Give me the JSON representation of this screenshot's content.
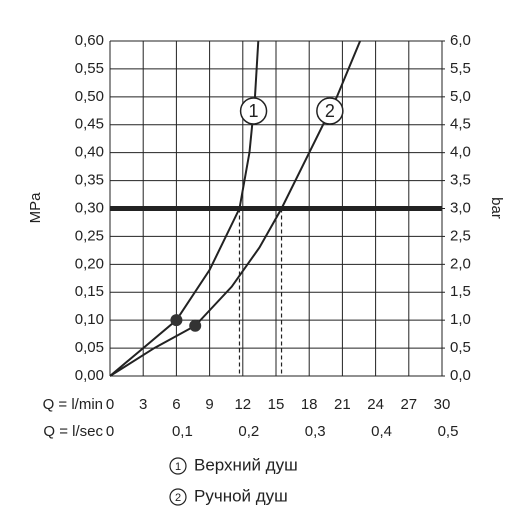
{
  "chart_data": {
    "type": "line",
    "y_label": "MPa",
    "y2_label": "bar",
    "x_label": "Q = l/min",
    "x2_label": "Q = l/sec",
    "xlim": [
      0,
      30
    ],
    "xticks": [
      0,
      3,
      6,
      9,
      12,
      15,
      18,
      21,
      24,
      27,
      30
    ],
    "x2lim": [
      0,
      0.5
    ],
    "x2ticks": [
      0,
      {
        "value": 0.1,
        "label": "0,1"
      },
      {
        "value": 0.2,
        "label": "0,2"
      },
      {
        "value": 0.3,
        "label": "0,3"
      },
      {
        "value": 0.4,
        "label": "0,4"
      },
      {
        "value": 0.5,
        "label": "0,5"
      }
    ],
    "ylim": [
      0,
      0.6
    ],
    "yticks": [
      {
        "value": 0,
        "label": "0,00"
      },
      {
        "value": 0.05,
        "label": "0,05"
      },
      {
        "value": 0.1,
        "label": "0,10"
      },
      {
        "value": 0.15,
        "label": "0,15"
      },
      {
        "value": 0.2,
        "label": "0,20"
      },
      {
        "value": 0.25,
        "label": "0,25"
      },
      {
        "value": 0.3,
        "label": "0,30"
      },
      {
        "value": 0.35,
        "label": "0,35"
      },
      {
        "value": 0.4,
        "label": "0,40"
      },
      {
        "value": 0.45,
        "label": "0,45"
      },
      {
        "value": 0.5,
        "label": "0,50"
      },
      {
        "value": 0.55,
        "label": "0,55"
      },
      {
        "value": 0.6,
        "label": "0,60"
      }
    ],
    "y2lim": [
      0,
      6
    ],
    "y2ticks": [
      {
        "value": 0,
        "label": "0,0"
      },
      {
        "value": 0.5,
        "label": "0,5"
      },
      {
        "value": 1,
        "label": "1,0"
      },
      {
        "value": 1.5,
        "label": "1,5"
      },
      {
        "value": 2,
        "label": "2,0"
      },
      {
        "value": 2.5,
        "label": "2,5"
      },
      {
        "value": 3,
        "label": "3,0"
      },
      {
        "value": 3.5,
        "label": "3,5"
      },
      {
        "value": 4,
        "label": "4,0"
      },
      {
        "value": 4.5,
        "label": "4,5"
      },
      {
        "value": 5,
        "label": "5,0"
      },
      {
        "value": 5.5,
        "label": "5,5"
      },
      {
        "value": 6,
        "label": "6,0"
      }
    ],
    "grid": true,
    "color": "#222222",
    "reference_line": 0.3,
    "series": [
      {
        "name": "Верхний душ",
        "label": "1",
        "x": [
          0,
          3,
          6,
          9,
          11.7,
          12.6,
          13.1,
          13.4
        ],
        "y": [
          0,
          0.05,
          0.1,
          0.19,
          0.3,
          0.4,
          0.5,
          0.6
        ],
        "marker": {
          "x": 6,
          "y": 0.1
        },
        "crossing_x": 11.7
      },
      {
        "name": "Ручной душ",
        "label": "2",
        "x": [
          0,
          4,
          7.7,
          11,
          13.5,
          15.5,
          18,
          20.5,
          22.6
        ],
        "y": [
          0,
          0.05,
          0.09,
          0.16,
          0.23,
          0.3,
          0.4,
          0.5,
          0.6
        ],
        "marker": {
          "x": 7.7,
          "y": 0.09
        },
        "crossing_x": 15.5
      }
    ]
  }
}
